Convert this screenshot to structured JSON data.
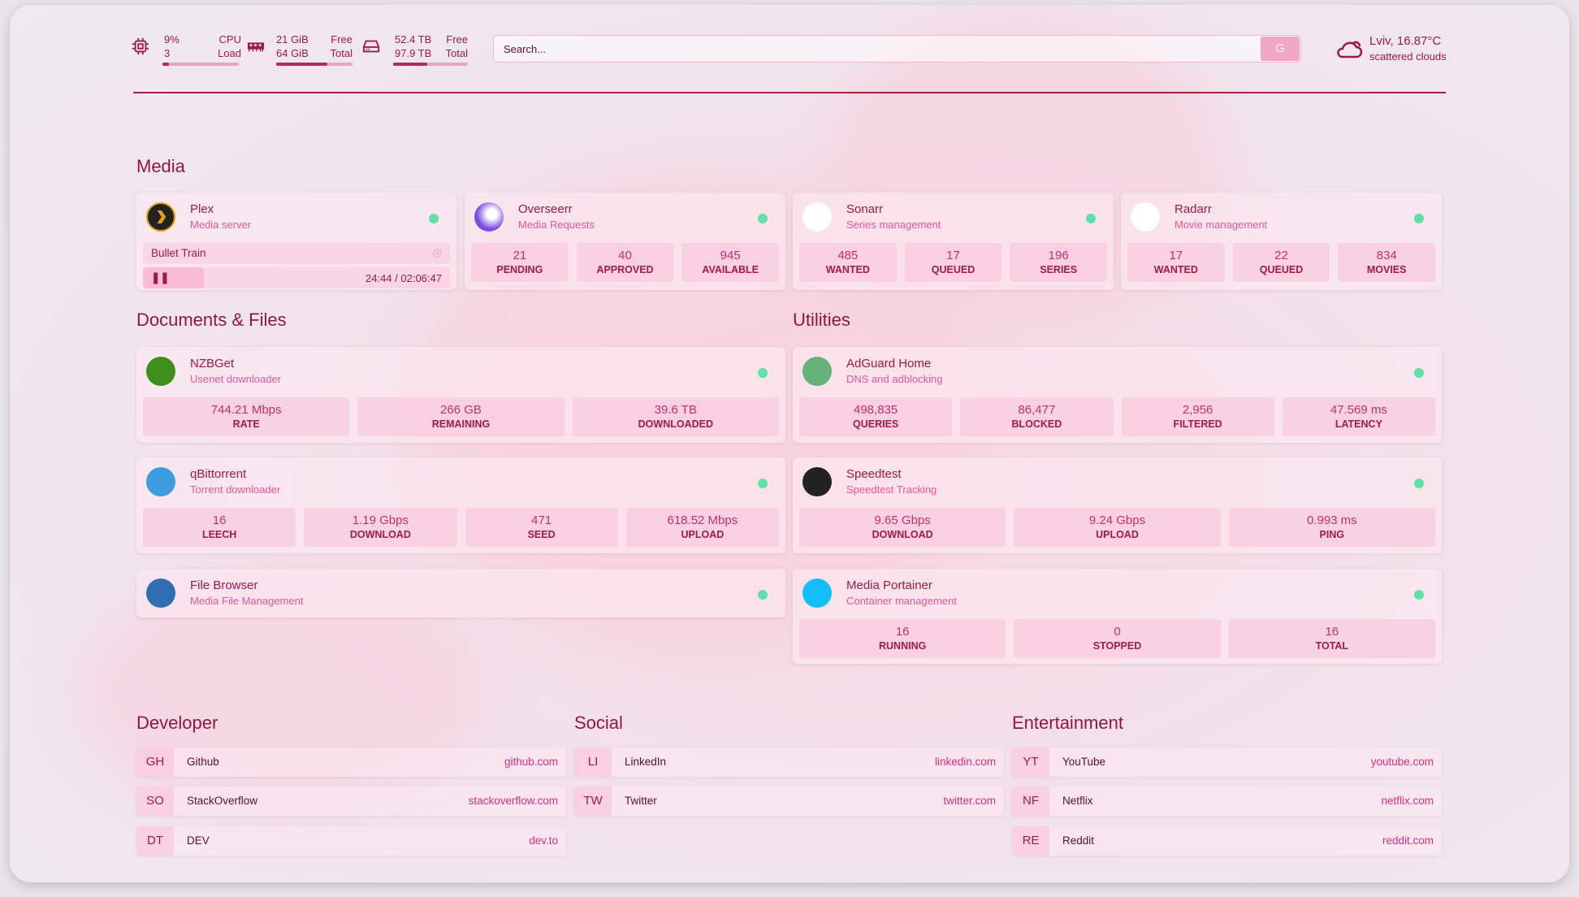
{
  "header": {
    "cpu": {
      "icon": "cpu-icon",
      "value": "9%",
      "value2": "3",
      "label": "CPU",
      "label2": "Load",
      "fraction": 0.09
    },
    "memory": {
      "icon": "memory-icon",
      "value": "21 GiB",
      "value2": "64 GiB",
      "label": "Free",
      "label2": "Total",
      "fraction": 0.67
    },
    "disk": {
      "icon": "disk-icon",
      "value": "52.4 TB",
      "value2": "97.9 TB",
      "label": "Free",
      "label2": "Total",
      "fraction": 0.46
    },
    "search": {
      "placeholder": "Search...",
      "button": "G"
    },
    "weather": {
      "icon": "cloud-icon",
      "location": "Lviv, 16.87°C",
      "condition": "scattered clouds"
    }
  },
  "sections": {
    "media": "Media",
    "documents": "Documents & Files",
    "utilities": "Utilities",
    "developer": "Developer",
    "social": "Social",
    "entertainment": "Entertainment"
  },
  "plex": {
    "name": "Plex",
    "sub": "Media server",
    "title": "Bullet Train",
    "time": "24:44 / 02:06:47",
    "status": "online"
  },
  "services": [
    {
      "name": "Overseerr",
      "sub": "Media Requests",
      "icon": "overseerr-icon",
      "stats": [
        [
          "21",
          "PENDING"
        ],
        [
          "40",
          "APPROVED"
        ],
        [
          "945",
          "AVAILABLE"
        ]
      ]
    },
    {
      "name": "Sonarr",
      "sub": "Series management",
      "icon": "sonarr-icon",
      "stats": [
        [
          "485",
          "WANTED"
        ],
        [
          "17",
          "QUEUED"
        ],
        [
          "196",
          "SERIES"
        ]
      ]
    },
    {
      "name": "Radarr",
      "sub": "Movie management",
      "icon": "radarr-icon",
      "stats": [
        [
          "17",
          "WANTED"
        ],
        [
          "22",
          "QUEUED"
        ],
        [
          "834",
          "MOVIES"
        ]
      ]
    },
    {
      "name": "NZBGet",
      "sub": "Usenet downloader",
      "icon": "nzbget-icon",
      "stats": [
        [
          "744.21 Mbps",
          "RATE"
        ],
        [
          "266 GB",
          "REMAINING"
        ],
        [
          "39.6 TB",
          "DOWNLOADED"
        ]
      ]
    },
    {
      "name": "qBittorrent",
      "sub": "Torrent downloader",
      "icon": "qbittorrent-icon",
      "stats": [
        [
          "16",
          "LEECH"
        ],
        [
          "1.19 Gbps",
          "DOWNLOAD"
        ],
        [
          "471",
          "SEED"
        ],
        [
          "618.52 Mbps",
          "UPLOAD"
        ]
      ]
    },
    {
      "name": "File Browser",
      "sub": "Media File Management",
      "icon": "filebrowser-icon",
      "stats": []
    },
    {
      "name": "AdGuard Home",
      "sub": "DNS and adblocking",
      "icon": "adguard-icon",
      "stats": [
        [
          "498,835",
          "QUERIES"
        ],
        [
          "86,477",
          "BLOCKED"
        ],
        [
          "2,956",
          "FILTERED"
        ],
        [
          "47.569 ms",
          "LATENCY"
        ]
      ]
    },
    {
      "name": "Speedtest",
      "sub": "Speedtest Tracking",
      "icon": "speedtest-icon",
      "stats": [
        [
          "9.65 Gbps",
          "DOWNLOAD"
        ],
        [
          "9.24 Gbps",
          "UPLOAD"
        ],
        [
          "0.993 ms",
          "PING"
        ]
      ]
    },
    {
      "name": "Media Portainer",
      "sub": "Container management",
      "icon": "portainer-icon",
      "stats": [
        [
          "16",
          "RUNNING"
        ],
        [
          "0",
          "STOPPED"
        ],
        [
          "16",
          "TOTAL"
        ]
      ]
    }
  ],
  "bookmarks": [
    [
      {
        "abbr": "GH",
        "name": "Github",
        "url": "github.com"
      },
      {
        "abbr": "SO",
        "name": "StackOverflow",
        "url": "stackoverflow.com"
      },
      {
        "abbr": "DT",
        "name": "DEV",
        "url": "dev.to"
      }
    ],
    [
      {
        "abbr": "LI",
        "name": "LinkedIn",
        "url": "linkedin.com"
      },
      {
        "abbr": "TW",
        "name": "Twitter",
        "url": "twitter.com"
      }
    ],
    [
      {
        "abbr": "YT",
        "name": "YouTube",
        "url": "youtube.com"
      },
      {
        "abbr": "NF",
        "name": "Netflix",
        "url": "netflix.com"
      },
      {
        "abbr": "RE",
        "name": "Reddit",
        "url": "reddit.com"
      }
    ]
  ],
  "colors": {
    "accent": "#9b1b4a",
    "subtitle": "#e2589b",
    "status_online": "#5ee0a8"
  }
}
